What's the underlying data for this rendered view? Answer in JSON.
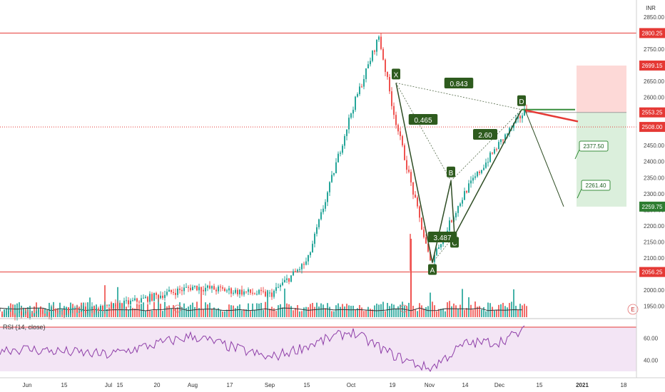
{
  "chart_data": [
    {
      "type": "candlestick",
      "title": "",
      "currency": "INR",
      "ylim": [
        1900,
        2850
      ],
      "y_ticks": [
        "1950.00",
        "2000.00",
        "2050.00",
        "2100.00",
        "2150.00",
        "2200.00",
        "2250.00",
        "2300.00",
        "2350.00",
        "2400.00",
        "2450.00",
        "2500.00",
        "2550.00",
        "2600.00",
        "2650.00",
        "2700.00",
        "2750.00",
        "2800.00",
        "2850.00"
      ],
      "x_ticks": [
        "Jun",
        "15",
        "Jul",
        "15",
        "20",
        "Aug",
        "17",
        "Sep",
        "15",
        "Oct",
        "19",
        "Nov",
        "14",
        "Dec",
        "15",
        "2021",
        "18"
      ],
      "horizontal_lines": [
        {
          "value": 2800.25,
          "label": "2800.25",
          "style": "solid"
        },
        {
          "value": 2508.0,
          "label": "2508.00",
          "style": "dotted"
        },
        {
          "value": 2056.25,
          "label": "2056.25",
          "style": "solid"
        }
      ],
      "position_tool": {
        "entry": 2553.25,
        "stop": 2699.15,
        "target": 2259.75
      },
      "harmonic_pattern": {
        "points": [
          {
            "label": "X",
            "price": 2645
          },
          {
            "label": "A",
            "price": 2085
          },
          {
            "label": "B",
            "price": 2340
          },
          {
            "label": "C",
            "price": 2170
          },
          {
            "label": "D",
            "price": 2562
          }
        ],
        "ratios": [
          "0.843",
          "0.465",
          "2.60",
          "3.487"
        ]
      },
      "projection_labels": [
        "2377.50",
        "2261.40"
      ],
      "price_key_points": [
        {
          "x": "Jun",
          "close": 1925
        },
        {
          "x": "Jul",
          "close": 1945
        },
        {
          "x": "Aug",
          "close": 2010
        },
        {
          "x": "Sep",
          "close": 1985
        },
        {
          "x": "Sep 15",
          "close": 2090
        },
        {
          "x": "Oct",
          "close": 2560
        },
        {
          "x": "Oct 12",
          "close": 2790
        },
        {
          "x": "Oct 19",
          "close": 2560
        },
        {
          "x": "Nov",
          "close": 2085
        },
        {
          "x": "Nov 14",
          "close": 2310
        },
        {
          "x": "Dec",
          "close": 2460
        },
        {
          "x": "Dec 10",
          "close": 2562
        }
      ]
    },
    {
      "type": "line",
      "title": "RSI (14, close)",
      "ylim": [
        30,
        75
      ],
      "y_ticks": [
        "60.00",
        "40.00"
      ],
      "band": [
        30,
        70
      ],
      "series": [
        {
          "name": "",
          "key_points": [
            {
              "x": "Jun",
              "value": 50
            },
            {
              "x": "Jul",
              "value": 45
            },
            {
              "x": "Aug",
              "value": 62
            },
            {
              "x": "Sep",
              "value": 42
            },
            {
              "x": "Oct",
              "value": 66
            },
            {
              "x": "Oct 19",
              "value": 45
            },
            {
              "x": "Nov",
              "value": 32
            },
            {
              "x": "Nov 14",
              "value": 55
            },
            {
              "x": "Dec",
              "value": 57
            },
            {
              "x": "Dec 10",
              "value": 67
            }
          ]
        }
      ]
    }
  ]
}
